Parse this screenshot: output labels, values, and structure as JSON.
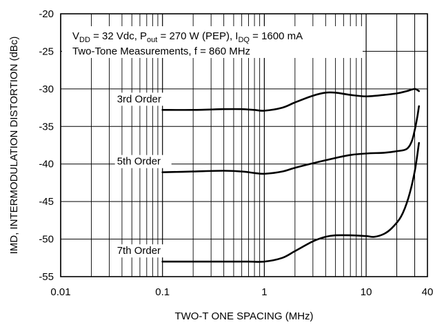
{
  "chart_data": {
    "type": "line",
    "xlabel": "TWO-T ONE SPACING (MHz)",
    "ylabel": "IMD, INTERMODULATION DISTORTION (dBc)",
    "x_scale": "log",
    "xlim": [
      0.01,
      40
    ],
    "ylim": [
      -55,
      -20
    ],
    "x_ticks": [
      0.01,
      0.1,
      1,
      10,
      40
    ],
    "x_tick_labels": [
      "0.01",
      "0.1",
      "1",
      "10",
      "40"
    ],
    "y_ticks": [
      -20,
      -25,
      -30,
      -35,
      -40,
      -45,
      -50,
      -55
    ],
    "y_tick_labels": [
      "-20",
      "-25",
      "-30",
      "-35",
      "-40",
      "-45",
      "-50",
      "-55"
    ],
    "grid": true,
    "annotation": {
      "vdd_symbol": "V",
      "vdd_sub": "DD",
      "vdd_text": " = 32 Vdc, P",
      "pout_sub": "out",
      "pout_text": " = 270 W (PEP), I",
      "idq_sub": "DQ",
      "idq_text": " = 1600 mA",
      "line2": "Two-Tone Measurements, f = 860 MHz"
    },
    "series": [
      {
        "name": "3rd Order",
        "x": [
          0.1,
          0.2,
          0.4,
          0.6,
          0.8,
          1,
          1.5,
          2,
          3,
          4,
          5,
          7,
          10,
          15,
          20,
          25,
          30,
          33
        ],
        "y": [
          -32.8,
          -32.8,
          -32.7,
          -32.7,
          -32.8,
          -32.9,
          -32.5,
          -31.8,
          -30.9,
          -30.5,
          -30.5,
          -30.8,
          -31.0,
          -30.8,
          -30.6,
          -30.3,
          -30.0,
          -30.3
        ]
      },
      {
        "name": "5th Order",
        "x": [
          0.1,
          0.2,
          0.4,
          0.6,
          0.8,
          1,
          1.5,
          2,
          3,
          5,
          7,
          10,
          15,
          20,
          25,
          28,
          30,
          32,
          33
        ],
        "y": [
          -41.1,
          -41.0,
          -40.9,
          -41.0,
          -41.2,
          -41.3,
          -41.0,
          -40.5,
          -39.9,
          -39.2,
          -38.8,
          -38.6,
          -38.5,
          -38.3,
          -38.0,
          -37.0,
          -35.5,
          -33.5,
          -32.3
        ]
      },
      {
        "name": "7th Order",
        "x": [
          0.1,
          0.2,
          0.4,
          0.7,
          1,
          1.5,
          2,
          3,
          4,
          5,
          7,
          10,
          12,
          15,
          18,
          22,
          26,
          30,
          33
        ],
        "y": [
          -53.0,
          -53.0,
          -53.0,
          -53.0,
          -53.0,
          -52.5,
          -51.6,
          -50.3,
          -49.7,
          -49.5,
          -49.5,
          -49.6,
          -49.7,
          -49.3,
          -48.5,
          -47.0,
          -44.5,
          -41.0,
          -37.2
        ]
      }
    ]
  }
}
